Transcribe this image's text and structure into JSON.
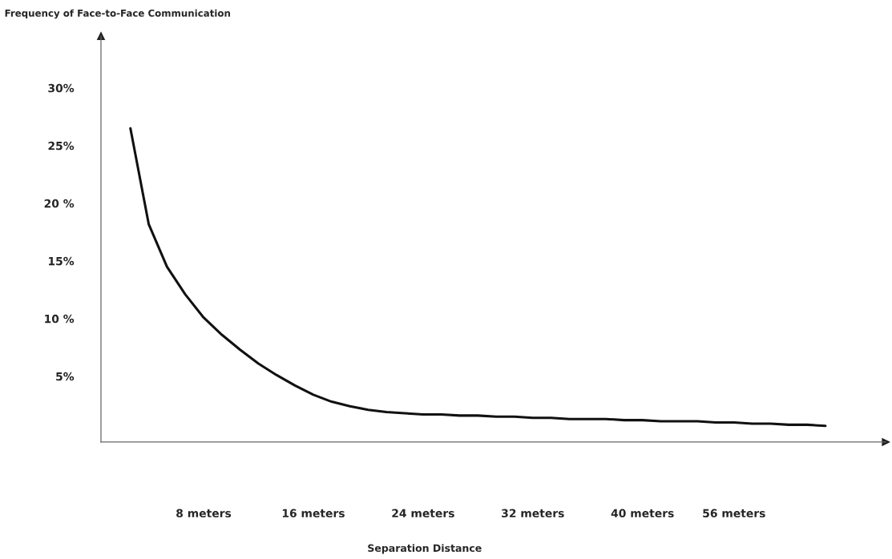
{
  "chart_data": {
    "type": "line",
    "title": "Frequency of Face-to-Face Communication",
    "xlabel": "Separation Distance",
    "categories": [
      null,
      null,
      null,
      null,
      "8 meters",
      null,
      null,
      null,
      null,
      null,
      "16 meters",
      null,
      null,
      null,
      null,
      null,
      "24 meters",
      null,
      null,
      null,
      null,
      null,
      "32 meters",
      null,
      null,
      null,
      null,
      null,
      "40 meters",
      null,
      null,
      null,
      null,
      "56 meters",
      null,
      null,
      null,
      null,
      null
    ],
    "series": [
      {
        "color": "#111111",
        "values": [
          26.5,
          18.2,
          14.5,
          12.1,
          10.1,
          8.6,
          7.3,
          6.1,
          5.1,
          4.2,
          3.4,
          2.8,
          2.4,
          2.1,
          1.9,
          1.8,
          1.7,
          1.7,
          1.6,
          1.6,
          1.5,
          1.5,
          1.4,
          1.4,
          1.3,
          1.3,
          1.3,
          1.2,
          1.2,
          1.1,
          1.1,
          1.1,
          1.0,
          1.0,
          0.9,
          0.9,
          0.8,
          0.8,
          0.7
        ]
      }
    ],
    "ylim": [
      -0.7,
      34.5
    ],
    "yticks": [
      {
        "value": 5,
        "label": "5%"
      },
      {
        "value": 10,
        "label": "10 %"
      },
      {
        "value": 15,
        "label": "15%"
      },
      {
        "value": 20,
        "label": "20 %"
      },
      {
        "value": 25,
        "label": "25%"
      },
      {
        "value": 30,
        "label": "30%"
      }
    ],
    "grid": false,
    "marker": "none",
    "line_style": "solid"
  }
}
